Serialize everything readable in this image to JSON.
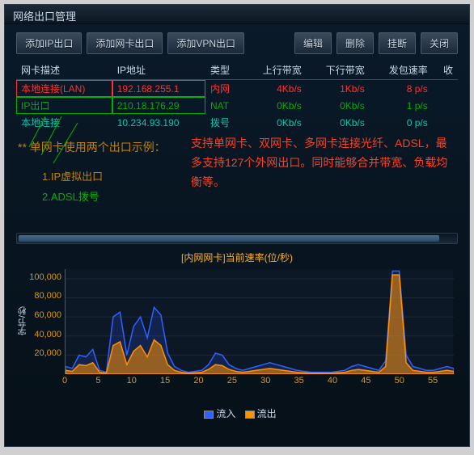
{
  "window": {
    "title": "网络出口管理"
  },
  "toolbar": {
    "add_ip": "添加IP出口",
    "add_nic": "添加网卡出口",
    "add_vpn": "添加VPN出口",
    "edit": "编辑",
    "delete": "删除",
    "disconnect": "挂断",
    "close": "关闭"
  },
  "table": {
    "columns": [
      "网卡描述",
      "IP地址",
      "类型",
      "上行带宽",
      "下行带宽",
      "发包速率",
      "收"
    ],
    "rows": [
      {
        "desc": "本地连接(LAN)",
        "ip": "192.168.255.1",
        "type": "内网",
        "up": "4Kb/s",
        "down": "1Kb/s",
        "pps": "8 p/s",
        "color": "#ff3030",
        "box": "#ff3030"
      },
      {
        "desc": "IP出口",
        "ip": "210.18.176.29",
        "type": "NAT",
        "up": "0Kb/s",
        "down": "0Kb/s",
        "pps": "1 p/s",
        "color": "#00b000",
        "box": "#00b000"
      },
      {
        "desc": "本地连接",
        "ip": "10.234.93.190",
        "type": "拨号",
        "up": "0Kb/s",
        "down": "0Kb/s",
        "pps": "0 p/s",
        "color": "#00c8b0",
        "box": null
      }
    ]
  },
  "annot": {
    "title": "** 单网卡使用两个出口示例：",
    "l1": "1.IP虚拟出口",
    "l2": "2.ADSL拨号",
    "desc": "支持单网卡、双网卡、多网卡连接光纤、ADSL，最多支持127个外网出口。同时能够合并带宽、负载均衡等。",
    "line_color": "#00b000"
  },
  "chart": {
    "title": "[内网网卡]当前速率(位/秒)",
    "ylabel": "字节/秒",
    "type": "area",
    "ylim": [
      0,
      110000
    ],
    "yticks": [
      20000,
      40000,
      60000,
      80000,
      100000
    ],
    "ytick_labels": [
      "20,000",
      "40,000",
      "60,000",
      "80,000",
      "100,000"
    ],
    "xlim": [
      0,
      58
    ],
    "xticks": [
      0,
      5,
      10,
      15,
      20,
      25,
      30,
      35,
      40,
      45,
      50,
      55
    ],
    "plot_bg": "#0c1826",
    "axis_color": "#4a5a6a",
    "tick_color": "#d89820",
    "tick_fontsize": 11,
    "series": [
      {
        "name": "流入",
        "color": "#3060ff",
        "fill": "rgba(48,96,255,0.18)",
        "values": [
          8000,
          6000,
          20000,
          18000,
          26000,
          4000,
          2000,
          60000,
          65000,
          20000,
          50000,
          60000,
          38000,
          70000,
          62000,
          22000,
          8000,
          4000,
          2000,
          3000,
          4000,
          10000,
          22000,
          20000,
          10000,
          6000,
          4000,
          6000,
          8000,
          10000,
          12000,
          10000,
          8000,
          6000,
          4000,
          3000,
          2000,
          2000,
          2000,
          2000,
          3000,
          4000,
          8000,
          10000,
          8000,
          6000,
          4000,
          14000,
          108000,
          108000,
          20000,
          8000,
          6000,
          4000,
          4000,
          6000,
          8000,
          6000
        ]
      },
      {
        "name": "流出",
        "color": "#ff9000",
        "fill": "rgba(255,144,0,0.55)",
        "values": [
          4000,
          3000,
          10000,
          9000,
          12000,
          2000,
          1000,
          30000,
          34000,
          10000,
          24000,
          30000,
          18000,
          36000,
          30000,
          10000,
          4000,
          2000,
          1000,
          1500,
          2000,
          5000,
          10000,
          9000,
          5000,
          3000,
          2000,
          3000,
          4000,
          5000,
          6000,
          5000,
          4000,
          3000,
          2000,
          1500,
          1000,
          1000,
          1000,
          1000,
          1500,
          2000,
          4000,
          5000,
          4000,
          3000,
          2000,
          8000,
          104000,
          104000,
          12000,
          4000,
          3000,
          2000,
          2000,
          3000,
          4000,
          3000
        ]
      }
    ],
    "legend_in": "流入",
    "legend_out": "流出"
  }
}
